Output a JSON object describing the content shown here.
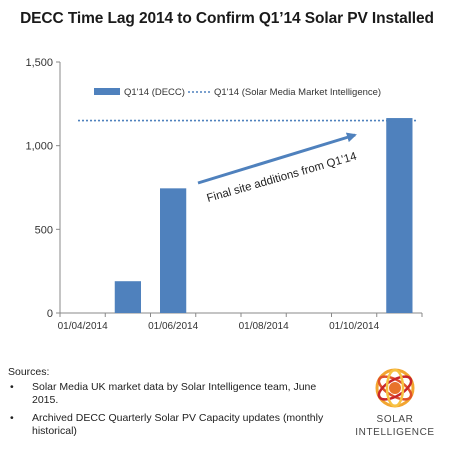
{
  "chart_data": {
    "type": "bar",
    "title": "DECC Time Lag 2014 to Confirm Q1’14 Solar PV Installed",
    "xlabel": "",
    "ylabel": "",
    "ylim": [
      0,
      1500
    ],
    "y_ticks": [
      "0",
      "500",
      "1,000",
      "1,500"
    ],
    "x_tick_labels": [
      "01/04/2014",
      "01/06/2014",
      "01/08/2014",
      "01/10/2014"
    ],
    "categories": [
      "01/04/2014",
      "01/05/2014",
      "01/06/2014",
      "01/07/2014",
      "01/08/2014",
      "01/09/2014",
      "01/10/2014",
      "01/11/2014"
    ],
    "grid": false,
    "legend_position": "top",
    "series": [
      {
        "name": "Q1'14 (DECC)",
        "type": "bar",
        "color": "#4f81bd",
        "values": [
          0,
          190,
          745,
          0,
          0,
          0,
          0,
          1165
        ]
      },
      {
        "name": "Q1'14 (Solar Media Market Intelligence)",
        "type": "dotted-line",
        "color": "#4f81bd",
        "value": 1150
      }
    ],
    "annotation": {
      "text": "Final site additions from Q1’14",
      "arrow_color": "#4f81bd"
    }
  },
  "sources": {
    "heading": "Sources:",
    "items": [
      "Solar Media UK market data by Solar Intelligence team, June 2015.",
      "Archived DECC Quarterly Solar PV Capacity updates (monthly historical)"
    ]
  },
  "logo": {
    "line1": "SOLAR",
    "line2": "INTELLIGENCE",
    "icon": "solar-intelligence-logo-icon"
  }
}
